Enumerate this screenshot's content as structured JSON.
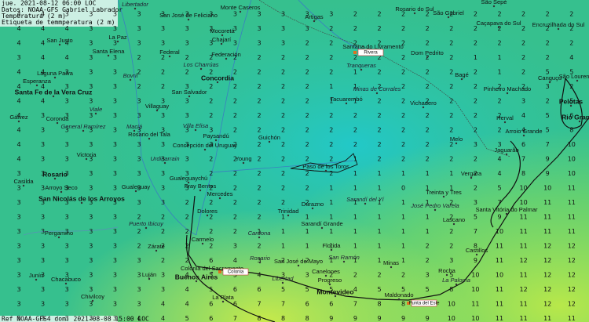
{
  "header": {
    "lines": [
      "jue. 2021-08-12 06:00 LOC",
      "Datos: NOAA-GFS   Gabriel Labrador",
      "Temperatura (2 m)",
      "Etiqueta de temmperatura (2 m)"
    ]
  },
  "footer": "Ref NOAA-GFS4 dom. 2021-08-08 15:00 LOC",
  "cities": [
    "Libertador",
    "Monte Caseros",
    "San José de Feliciano",
    "Artigas",
    "Rosario do Sul",
    "São Gabriel",
    "São Sepé",
    "Caçapava do Sul",
    "Encruzilhada do Sul",
    "San Justo",
    "La Paz",
    "Mocoretá",
    "Chajarí",
    "Santana do Livramento",
    "Dom Pedrito",
    "Santa Elena",
    "Federal",
    "Federación",
    "Los Charrúas",
    "Tranqueras",
    "Laguna Paiva",
    "Bovril",
    "Concordia",
    "Bagé",
    "Canguçu",
    "São Lourenço",
    "Esperanza",
    "San Salvador",
    "Minas de Corrales",
    "Pinheiro Machado",
    "Santa Fe de la Vera Cruz",
    "Tacuarembó",
    "Vichadero",
    "Pelotas",
    "Gálvez",
    "Coronda",
    "Viale",
    "Villaguay",
    "Herval",
    "Rio Grande",
    "General Ramírez",
    "Maciá",
    "Rosario del Tala",
    "Villa Elisa",
    "Paysandú",
    "Guichón",
    "Melo",
    "Arroio Grande",
    "Concepción del Uruguay",
    "Victoria",
    "Jaguarão",
    "Urdinarrain",
    "Young",
    "Paso de los Toros",
    "Vergara",
    "Casilda",
    "Rosario",
    "Gualeguaychú",
    "Fray Bentos",
    "Mercedes",
    "Arroyo Seco",
    "Gualeguay",
    "Treinta y Tres",
    "Sarandí del Yí",
    "San Nicolás de los Arroyos",
    "Santa Vitória do Palmar",
    "Durazno",
    "José Pedro Varela",
    "Dolores",
    "Trinidad",
    "Pergamino",
    "Sarandí Grande",
    "Lascano",
    "Puerto Ibicuy",
    "Carmelo",
    "Cardona",
    "Zárate",
    "Florida",
    "Castillos",
    "San José de Mayo",
    "Rosario",
    "San Ramón",
    "Minas",
    "Colonia del Sacramento",
    "Junín",
    "Chacabuco",
    "Luján",
    "Buenos Aires",
    "Canelones",
    "Libertad",
    "Progreso",
    "Rocha",
    "La Paloma",
    "Montevideo",
    "Chivilcoy",
    "La Plata",
    "Maldonado"
  ],
  "station_labels": [
    "Rivera",
    "Colonia",
    "Punta del Este"
  ],
  "temperature_grid": [
    [
      4,
      4,
      3,
      3,
      3,
      3,
      3,
      3,
      3,
      3,
      3,
      3,
      3,
      3,
      2,
      2,
      2,
      2,
      2,
      2,
      2,
      2,
      2,
      2
    ],
    [
      4,
      4,
      4,
      3,
      3,
      3,
      3,
      3,
      3,
      3,
      3,
      3,
      3,
      2,
      2,
      2,
      2,
      2,
      2,
      2,
      2,
      2,
      2,
      2
    ],
    [
      4,
      4,
      4,
      3,
      3,
      3,
      3,
      3,
      3,
      3,
      3,
      3,
      2,
      2,
      2,
      2,
      2,
      2,
      2,
      2,
      2,
      2,
      2,
      2
    ],
    [
      3,
      4,
      4,
      3,
      3,
      2,
      2,
      2,
      2,
      2,
      2,
      2,
      2,
      2,
      2,
      2,
      2,
      2,
      2,
      1,
      1,
      2,
      2,
      4
    ],
    [
      4,
      4,
      3,
      3,
      3,
      2,
      2,
      2,
      2,
      2,
      2,
      2,
      2,
      2,
      1,
      2,
      2,
      2,
      2,
      2,
      1,
      2,
      5,
      5
    ],
    [
      4,
      4,
      3,
      3,
      3,
      2,
      2,
      3,
      2,
      2,
      2,
      2,
      2,
      1,
      1,
      2,
      2,
      2,
      2,
      2,
      2,
      2,
      3,
      2
    ],
    [
      4,
      4,
      3,
      3,
      3,
      3,
      3,
      3,
      2,
      2,
      2,
      2,
      2,
      1,
      1,
      2,
      2,
      2,
      2,
      2,
      2,
      3,
      2,
      5
    ],
    [
      4,
      3,
      3,
      3,
      3,
      3,
      3,
      3,
      2,
      2,
      2,
      2,
      2,
      2,
      2,
      2,
      2,
      2,
      2,
      2,
      2,
      4,
      5,
      6
    ],
    [
      4,
      3,
      3,
      3,
      3,
      3,
      3,
      3,
      3,
      2,
      2,
      2,
      2,
      2,
      2,
      2,
      2,
      2,
      2,
      2,
      2,
      4,
      5,
      8
    ],
    [
      4,
      3,
      3,
      3,
      3,
      3,
      3,
      3,
      3,
      2,
      2,
      2,
      2,
      2,
      2,
      2,
      2,
      2,
      2,
      3,
      3,
      6,
      7,
      10
    ],
    [
      4,
      3,
      3,
      3,
      3,
      3,
      3,
      3,
      2,
      2,
      2,
      2,
      2,
      2,
      1,
      2,
      2,
      2,
      2,
      2,
      4,
      7,
      9,
      10
    ],
    [
      3,
      3,
      3,
      3,
      3,
      3,
      3,
      3,
      2,
      2,
      2,
      2,
      2,
      2,
      1,
      1,
      1,
      1,
      1,
      2,
      4,
      8,
      9,
      10
    ],
    [
      3,
      3,
      3,
      3,
      3,
      3,
      3,
      3,
      2,
      2,
      2,
      2,
      2,
      1,
      1,
      1,
      0,
      1,
      1,
      2,
      5,
      10,
      10,
      11
    ],
    [
      3,
      3,
      3,
      3,
      3,
      3,
      3,
      2,
      2,
      2,
      2,
      2,
      2,
      1,
      1,
      1,
      1,
      1,
      2,
      3,
      7,
      10,
      11,
      11
    ],
    [
      3,
      3,
      3,
      3,
      3,
      2,
      2,
      2,
      2,
      2,
      2,
      1,
      1,
      1,
      1,
      1,
      1,
      1,
      2,
      5,
      9,
      11,
      11,
      11
    ],
    [
      3,
      3,
      3,
      3,
      3,
      2,
      2,
      2,
      2,
      2,
      1,
      1,
      1,
      1,
      1,
      1,
      1,
      1,
      2,
      7,
      10,
      11,
      11,
      11
    ],
    [
      3,
      3,
      3,
      3,
      3,
      2,
      2,
      2,
      2,
      3,
      2,
      1,
      1,
      1,
      1,
      1,
      1,
      2,
      2,
      8,
      11,
      11,
      12,
      12
    ],
    [
      3,
      3,
      3,
      3,
      3,
      3,
      2,
      2,
      6,
      4,
      3,
      2,
      2,
      1,
      1,
      1,
      1,
      2,
      3,
      9,
      11,
      12,
      12,
      12
    ],
    [
      3,
      3,
      3,
      3,
      3,
      3,
      3,
      4,
      5,
      5,
      4,
      3,
      3,
      2,
      2,
      2,
      2,
      3,
      5,
      10,
      10,
      11,
      12,
      12
    ],
    [
      3,
      3,
      3,
      3,
      3,
      3,
      3,
      4,
      5,
      6,
      6,
      5,
      5,
      5,
      4,
      5,
      5,
      5,
      8,
      10,
      11,
      12,
      12,
      12
    ],
    [
      3,
      3,
      3,
      3,
      3,
      3,
      4,
      4,
      6,
      6,
      7,
      7,
      6,
      6,
      7,
      8,
      8,
      9,
      10,
      11,
      11,
      11,
      12,
      12
    ],
    [
      3,
      3,
      3,
      3,
      3,
      4,
      4,
      5,
      6,
      7,
      8,
      8,
      8,
      9,
      9,
      9,
      9,
      9,
      10,
      10,
      11,
      11,
      11,
      11
    ]
  ]
}
